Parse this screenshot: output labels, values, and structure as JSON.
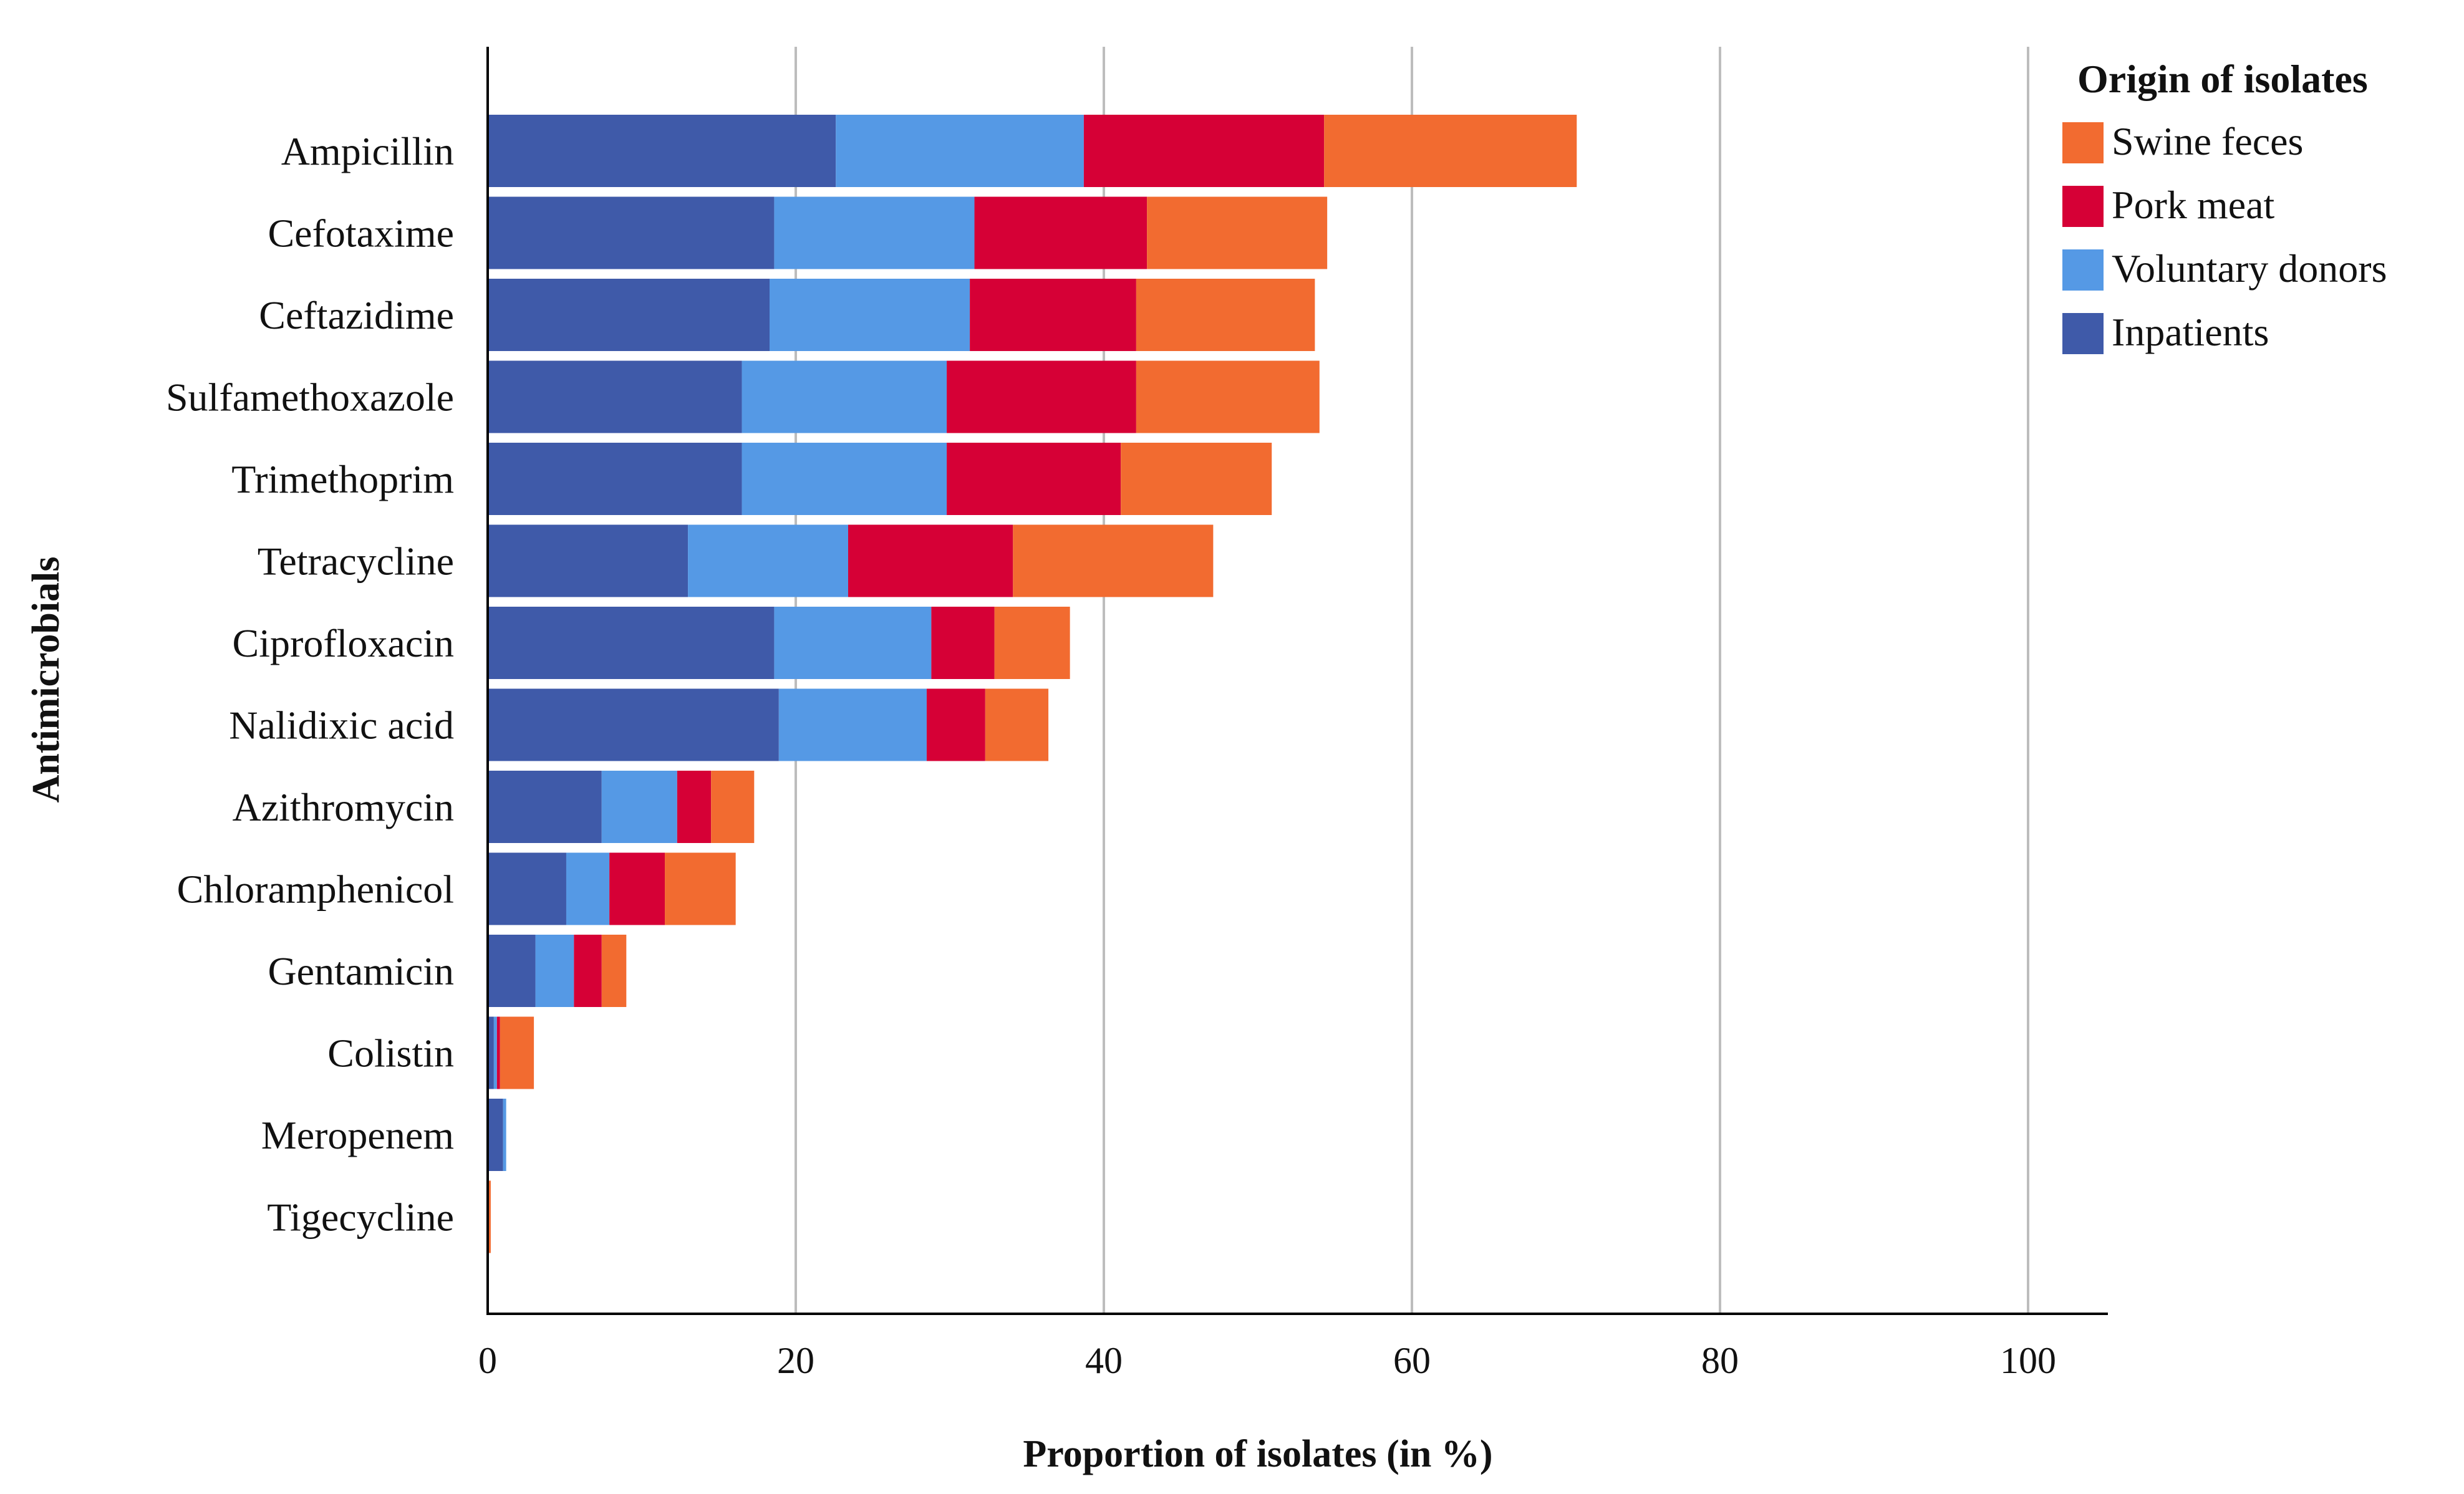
{
  "chart_data": {
    "type": "bar",
    "orientation": "horizontal",
    "stacked": true,
    "title": "",
    "xlabel": "Proportion of isolates (in %)",
    "ylabel": "Antimicrobials",
    "xlim": [
      0,
      100
    ],
    "xticks": [
      "0",
      "20",
      "40",
      "60",
      "80",
      "100"
    ],
    "grid": true,
    "legend": {
      "title": "Origin of isolates",
      "placement": "top-right",
      "entries": [
        "Swine feces",
        "Pork meat",
        "Voluntary donors",
        "Inpatients"
      ]
    },
    "categories": [
      "Ampicillin",
      "Cefotaxime",
      "Ceftazidime",
      "Sulfamethoxazole",
      "Trimethoprim",
      "Tetracycline",
      "Ciprofloxacin",
      "Nalidixic acid",
      "Azithromycin",
      "Chloramphenicol",
      "Gentamicin",
      "Colistin",
      "Meropenem",
      "Tigecycline"
    ],
    "series": [
      {
        "name": "Inpatients",
        "color": "#3F5AA9",
        "values": [
          22.6,
          18.6,
          18.3,
          16.5,
          16.5,
          13.0,
          18.6,
          18.9,
          7.4,
          5.1,
          3.1,
          0.4,
          1.0,
          0.0
        ]
      },
      {
        "name": "Voluntary donors",
        "color": "#5599E5",
        "values": [
          16.1,
          13.0,
          13.0,
          13.3,
          13.3,
          10.4,
          10.2,
          9.6,
          4.9,
          2.8,
          2.5,
          0.2,
          0.2,
          0.0
        ]
      },
      {
        "name": "Pork meat",
        "color": "#D60036",
        "values": [
          15.6,
          11.2,
          10.8,
          12.3,
          11.3,
          10.7,
          4.1,
          3.8,
          2.2,
          3.6,
          1.8,
          0.2,
          0.0,
          0.0
        ]
      },
      {
        "name": "Swine feces",
        "color": "#F26B30",
        "values": [
          16.4,
          11.7,
          11.6,
          11.9,
          9.8,
          13.0,
          4.9,
          4.1,
          2.8,
          4.6,
          1.6,
          2.2,
          0.0,
          0.2
        ]
      }
    ]
  }
}
